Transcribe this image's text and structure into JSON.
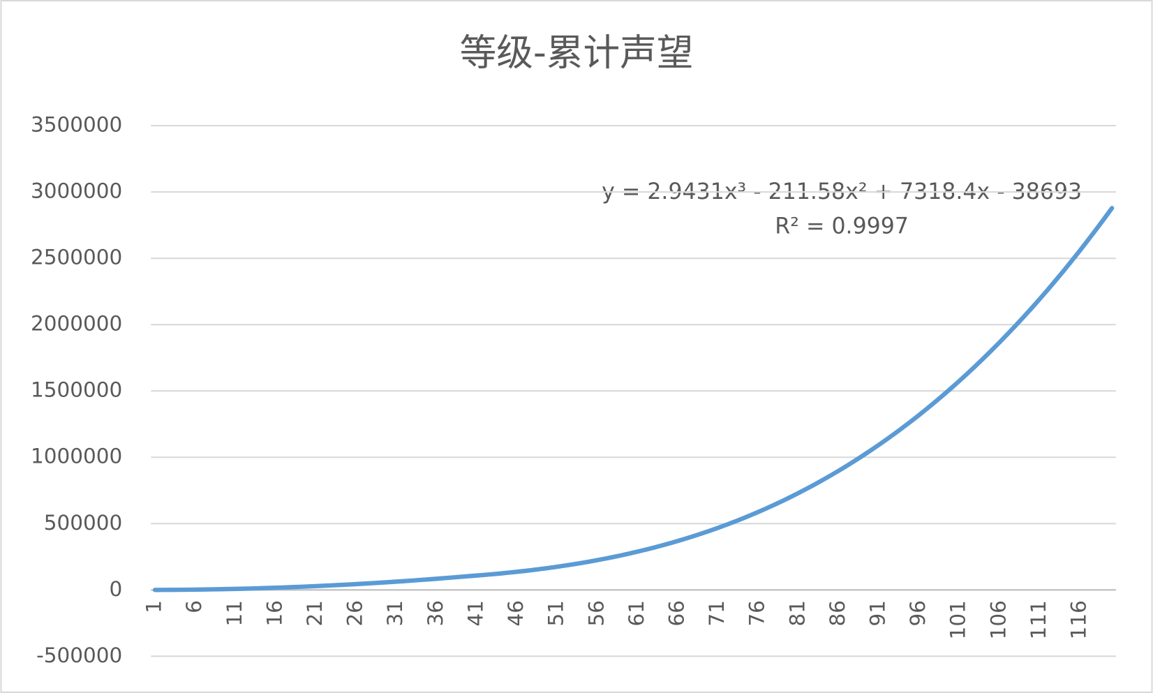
{
  "chart_data": {
    "type": "line",
    "title": "等级-累计声望",
    "annotations": [
      "y = 2.9431x³ - 211.58x² + 7318.4x - 38693",
      "R² = 0.9997"
    ],
    "categories": [
      1,
      null,
      null,
      null,
      null,
      6,
      null,
      null,
      null,
      null,
      11,
      null,
      null,
      null,
      null,
      16,
      null,
      null,
      null,
      null,
      21,
      null,
      null,
      null,
      null,
      26,
      null,
      null,
      null,
      null,
      31,
      null,
      null,
      null,
      null,
      36,
      null,
      null,
      null,
      null,
      41,
      null,
      null,
      null,
      null,
      46,
      null,
      null,
      null,
      null,
      51,
      null,
      null,
      null,
      null,
      56,
      null,
      null,
      null,
      null,
      61,
      null,
      null,
      null,
      null,
      66,
      null,
      null,
      null,
      null,
      71,
      null,
      null,
      null,
      null,
      76,
      null,
      null,
      null,
      null,
      81,
      null,
      null,
      null,
      null,
      86,
      null,
      null,
      null,
      null,
      91,
      null,
      null,
      null,
      null,
      96,
      null,
      null,
      null,
      null,
      101,
      null,
      null,
      null,
      null,
      106,
      null,
      null,
      null,
      null,
      111,
      null,
      null,
      null,
      null,
      116,
      null,
      null,
      null,
      null
    ],
    "series": [
      {
        "name": "累计声望",
        "color": "#5b9bd5",
        "values": [
          65,
          260,
          585,
          1040,
          1625,
          2340,
          3185,
          4160,
          5265,
          6500,
          7865,
          9360,
          10985,
          12740,
          14625,
          16640,
          18785,
          21060,
          23465,
          26000,
          28665,
          31460,
          34385,
          37440,
          40625,
          43940,
          47385,
          50960,
          54665,
          58500,
          62465,
          66560,
          70785,
          75140,
          79625,
          84240,
          88985,
          93860,
          98865,
          104000,
          108536,
          113501,
          118784,
          124403,
          130375,
          136720,
          143454,
          150593,
          158158,
          166165,
          174630,
          183575,
          193014,
          202966,
          213447,
          224478,
          236075,
          248253,
          261034,
          274433,
          288468,
          303157,
          318518,
          334569,
          351326,
          368809,
          387033,
          406017,
          425780,
          446336,
          467706,
          489907,
          512956,
          536872,
          561669,
          587369,
          613988,
          641543,
          670053,
          699534,
          730005,
          761483,
          793986,
          827532,
          862136,
          897819,
          934599,
          972490,
          1011514,
          1051685,
          1093022,
          1135543,
          1179266,
          1224208,
          1270385,
          1317819,
          1366524,
          1416518,
          1467820,
          1520447,
          1574416,
          1629747,
          1686455,
          1744559,
          1804075,
          1865023,
          1927421,
          1991283,
          2056631,
          2123479,
          2191847,
          2261752,
          2333211,
          2406243,
          2480864,
          2557094,
          2634948,
          2714445,
          2795605,
          2878440
        ]
      }
    ],
    "ylim": [
      -500000,
      3500000
    ],
    "yticks": [
      -500000,
      0,
      500000,
      1000000,
      1500000,
      2000000,
      2500000,
      3000000,
      3500000
    ],
    "grid": true
  }
}
